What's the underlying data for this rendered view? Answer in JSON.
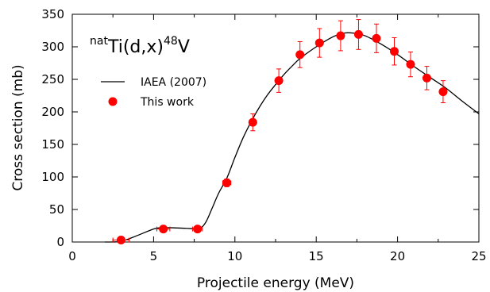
{
  "chart_data": {
    "type": "scatter",
    "xlabel": "Projectile energy (MeV)",
    "ylabel": "Cross section (mb)",
    "xlim": [
      0,
      25
    ],
    "ylim": [
      0,
      350
    ],
    "xticks": [
      0,
      5,
      10,
      15,
      20,
      25
    ],
    "yticks": [
      0,
      50,
      100,
      150,
      200,
      250,
      300,
      350
    ],
    "grid": false,
    "legend_position": "upper-left",
    "annotation": {
      "sup_left": "nat",
      "main": "Ti(d,x)",
      "sup_right": "48",
      "tail": "V"
    },
    "series": [
      {
        "name": "IAEA (2007)",
        "kind": "line",
        "color": "#000000",
        "x": [
          2.0,
          3.0,
          4.0,
          5.0,
          5.5,
          6.0,
          7.0,
          7.8,
          8.2,
          8.6,
          9.0,
          9.5,
          10.0,
          10.5,
          11.0,
          11.5,
          12.0,
          12.5,
          13.0,
          13.5,
          14.0,
          15.0,
          16.0,
          16.7,
          17.3,
          18.0,
          19.0,
          20.0,
          21.0,
          22.0,
          23.0,
          24.0,
          25.0
        ],
        "y": [
          0,
          1,
          10,
          20,
          22,
          22,
          21,
          21,
          30,
          52,
          75,
          98,
          130,
          160,
          185,
          207,
          226,
          242,
          257,
          270,
          282,
          300,
          315,
          321,
          321,
          317,
          304,
          288,
          270,
          253,
          236,
          216,
          197
        ]
      },
      {
        "name": "This work",
        "kind": "points",
        "color": "#ff0000",
        "x": [
          3.0,
          5.6,
          7.7,
          9.5,
          11.1,
          12.7,
          14.0,
          15.2,
          16.5,
          17.6,
          18.7,
          19.8,
          20.8,
          21.8,
          22.8
        ],
        "y": [
          3,
          20,
          20,
          91,
          184,
          248,
          288,
          306,
          317,
          319,
          313,
          293,
          273,
          252,
          231
        ],
        "yerr": [
          2,
          3,
          3,
          6,
          13,
          18,
          20,
          22,
          23,
          23,
          22,
          21,
          19,
          18,
          17
        ],
        "xerr": [
          0.5,
          0.4,
          0.3,
          0.25,
          0.2,
          0.2,
          0.2,
          0.2,
          0.2,
          0.2,
          0.2,
          0.2,
          0.2,
          0.2,
          0.2
        ]
      }
    ]
  }
}
